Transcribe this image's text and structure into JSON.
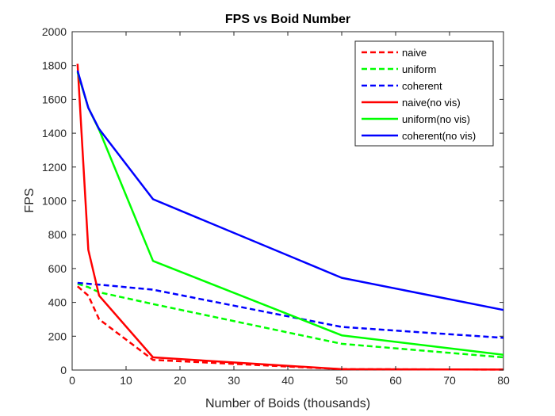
{
  "chart_data": {
    "type": "line",
    "title": "FPS vs Boid Number",
    "xlabel": "Number of Boids (thousands)",
    "ylabel": "FPS",
    "xlim": [
      0,
      80
    ],
    "ylim": [
      0,
      2000
    ],
    "xticks": [
      0,
      10,
      20,
      30,
      40,
      50,
      60,
      70,
      80
    ],
    "yticks": [
      0,
      200,
      400,
      600,
      800,
      1000,
      1200,
      1400,
      1600,
      1800,
      2000
    ],
    "grid": false,
    "legend_position": "top-right",
    "series": [
      {
        "name": "naive",
        "color": "#ff0000",
        "dash": "dashed",
        "x": [
          1,
          3,
          5,
          15,
          50,
          80
        ],
        "y": [
          495,
          440,
          300,
          60,
          5,
          3
        ]
      },
      {
        "name": "uniform",
        "color": "#00ff00",
        "dash": "dashed",
        "x": [
          1,
          3,
          5,
          15,
          50,
          80
        ],
        "y": [
          510,
          490,
          460,
          390,
          155,
          75
        ]
      },
      {
        "name": "coherent",
        "color": "#0000ff",
        "dash": "dashed",
        "x": [
          1,
          3,
          5,
          15,
          50,
          80
        ],
        "y": [
          515,
          510,
          505,
          475,
          255,
          190
        ]
      },
      {
        "name": "naive(no vis)",
        "color": "#ff0000",
        "dash": "solid",
        "x": [
          1,
          3,
          5,
          15,
          50,
          80
        ],
        "y": [
          1810,
          710,
          440,
          75,
          5,
          3
        ]
      },
      {
        "name": "uniform(no vis)",
        "color": "#00ff00",
        "dash": "solid",
        "x": [
          1,
          3,
          5,
          15,
          50,
          80
        ],
        "y": [
          1760,
          1550,
          1420,
          645,
          205,
          90
        ]
      },
      {
        "name": "coherent(no vis)",
        "color": "#0000ff",
        "dash": "solid",
        "x": [
          1,
          3,
          5,
          15,
          50,
          80
        ],
        "y": [
          1770,
          1550,
          1425,
          1010,
          545,
          355
        ]
      }
    ]
  }
}
